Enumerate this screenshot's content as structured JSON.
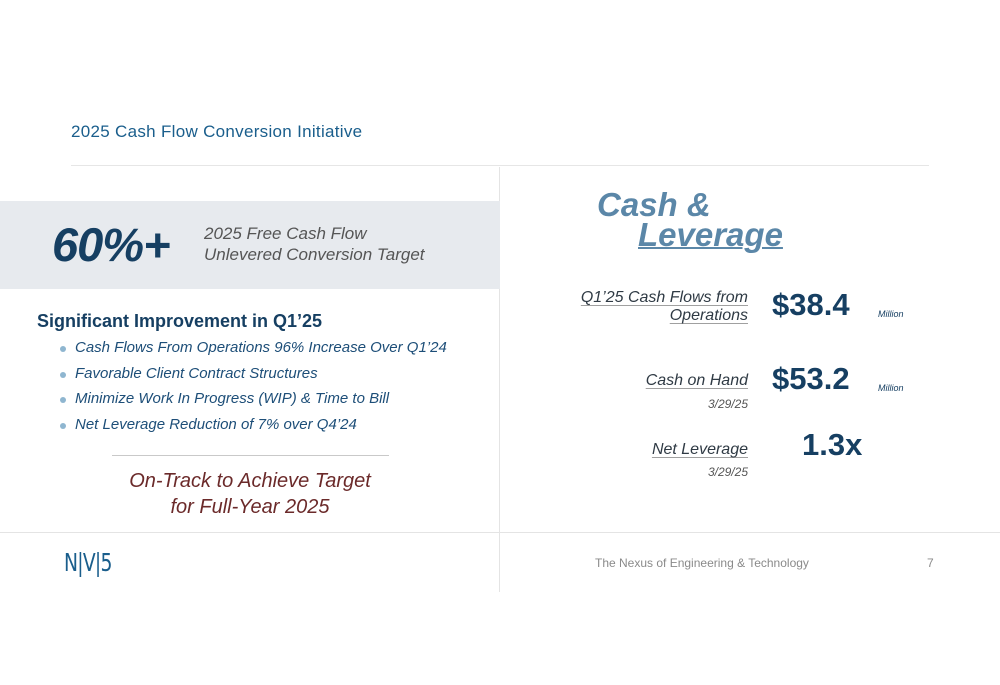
{
  "slide": {
    "title": "2025 Cash Flow Conversion Initiative",
    "page_number": "7",
    "tagline": "The Nexus of Engineering & Technology",
    "logo_text": "N|V|5"
  },
  "target": {
    "value": "60%+",
    "desc_line1": "2025 Free Cash Flow",
    "desc_line2": "Unlevered Conversion Target"
  },
  "improvement": {
    "heading": "Significant Improvement in Q1’25",
    "bullets": [
      "Cash Flows From Operations 96% Increase Over Q1’24",
      "Favorable Client Contract Structures",
      "Minimize Work In Progress (WIP) & Time to Bill",
      "Net Leverage Reduction of 7% over Q4’24"
    ]
  },
  "callout": {
    "line1": "On-Track to Achieve Target",
    "line2": "for Full-Year 2025"
  },
  "cash_leverage": {
    "title_line1": "Cash &",
    "title_line2": "Leverage",
    "metrics": [
      {
        "label_line1": "Q1’25 Cash Flows from",
        "label_line2": "Operations",
        "date": "",
        "value": "$38.4",
        "unit": "Million"
      },
      {
        "label_line1": "Cash on Hand",
        "label_line2": "",
        "date": "3/29/25",
        "value": "$53.2",
        "unit": "Million"
      },
      {
        "label_line1": "Net Leverage",
        "label_line2": "",
        "date": "3/29/25",
        "value": "1.3x",
        "unit": ""
      }
    ]
  },
  "colors": {
    "navy": "#163f62",
    "title_blue": "#1a5e8c",
    "steel_blue": "#5b87a8",
    "callout_maroon": "#6b2a2a",
    "band_gray": "#e7eaee"
  }
}
